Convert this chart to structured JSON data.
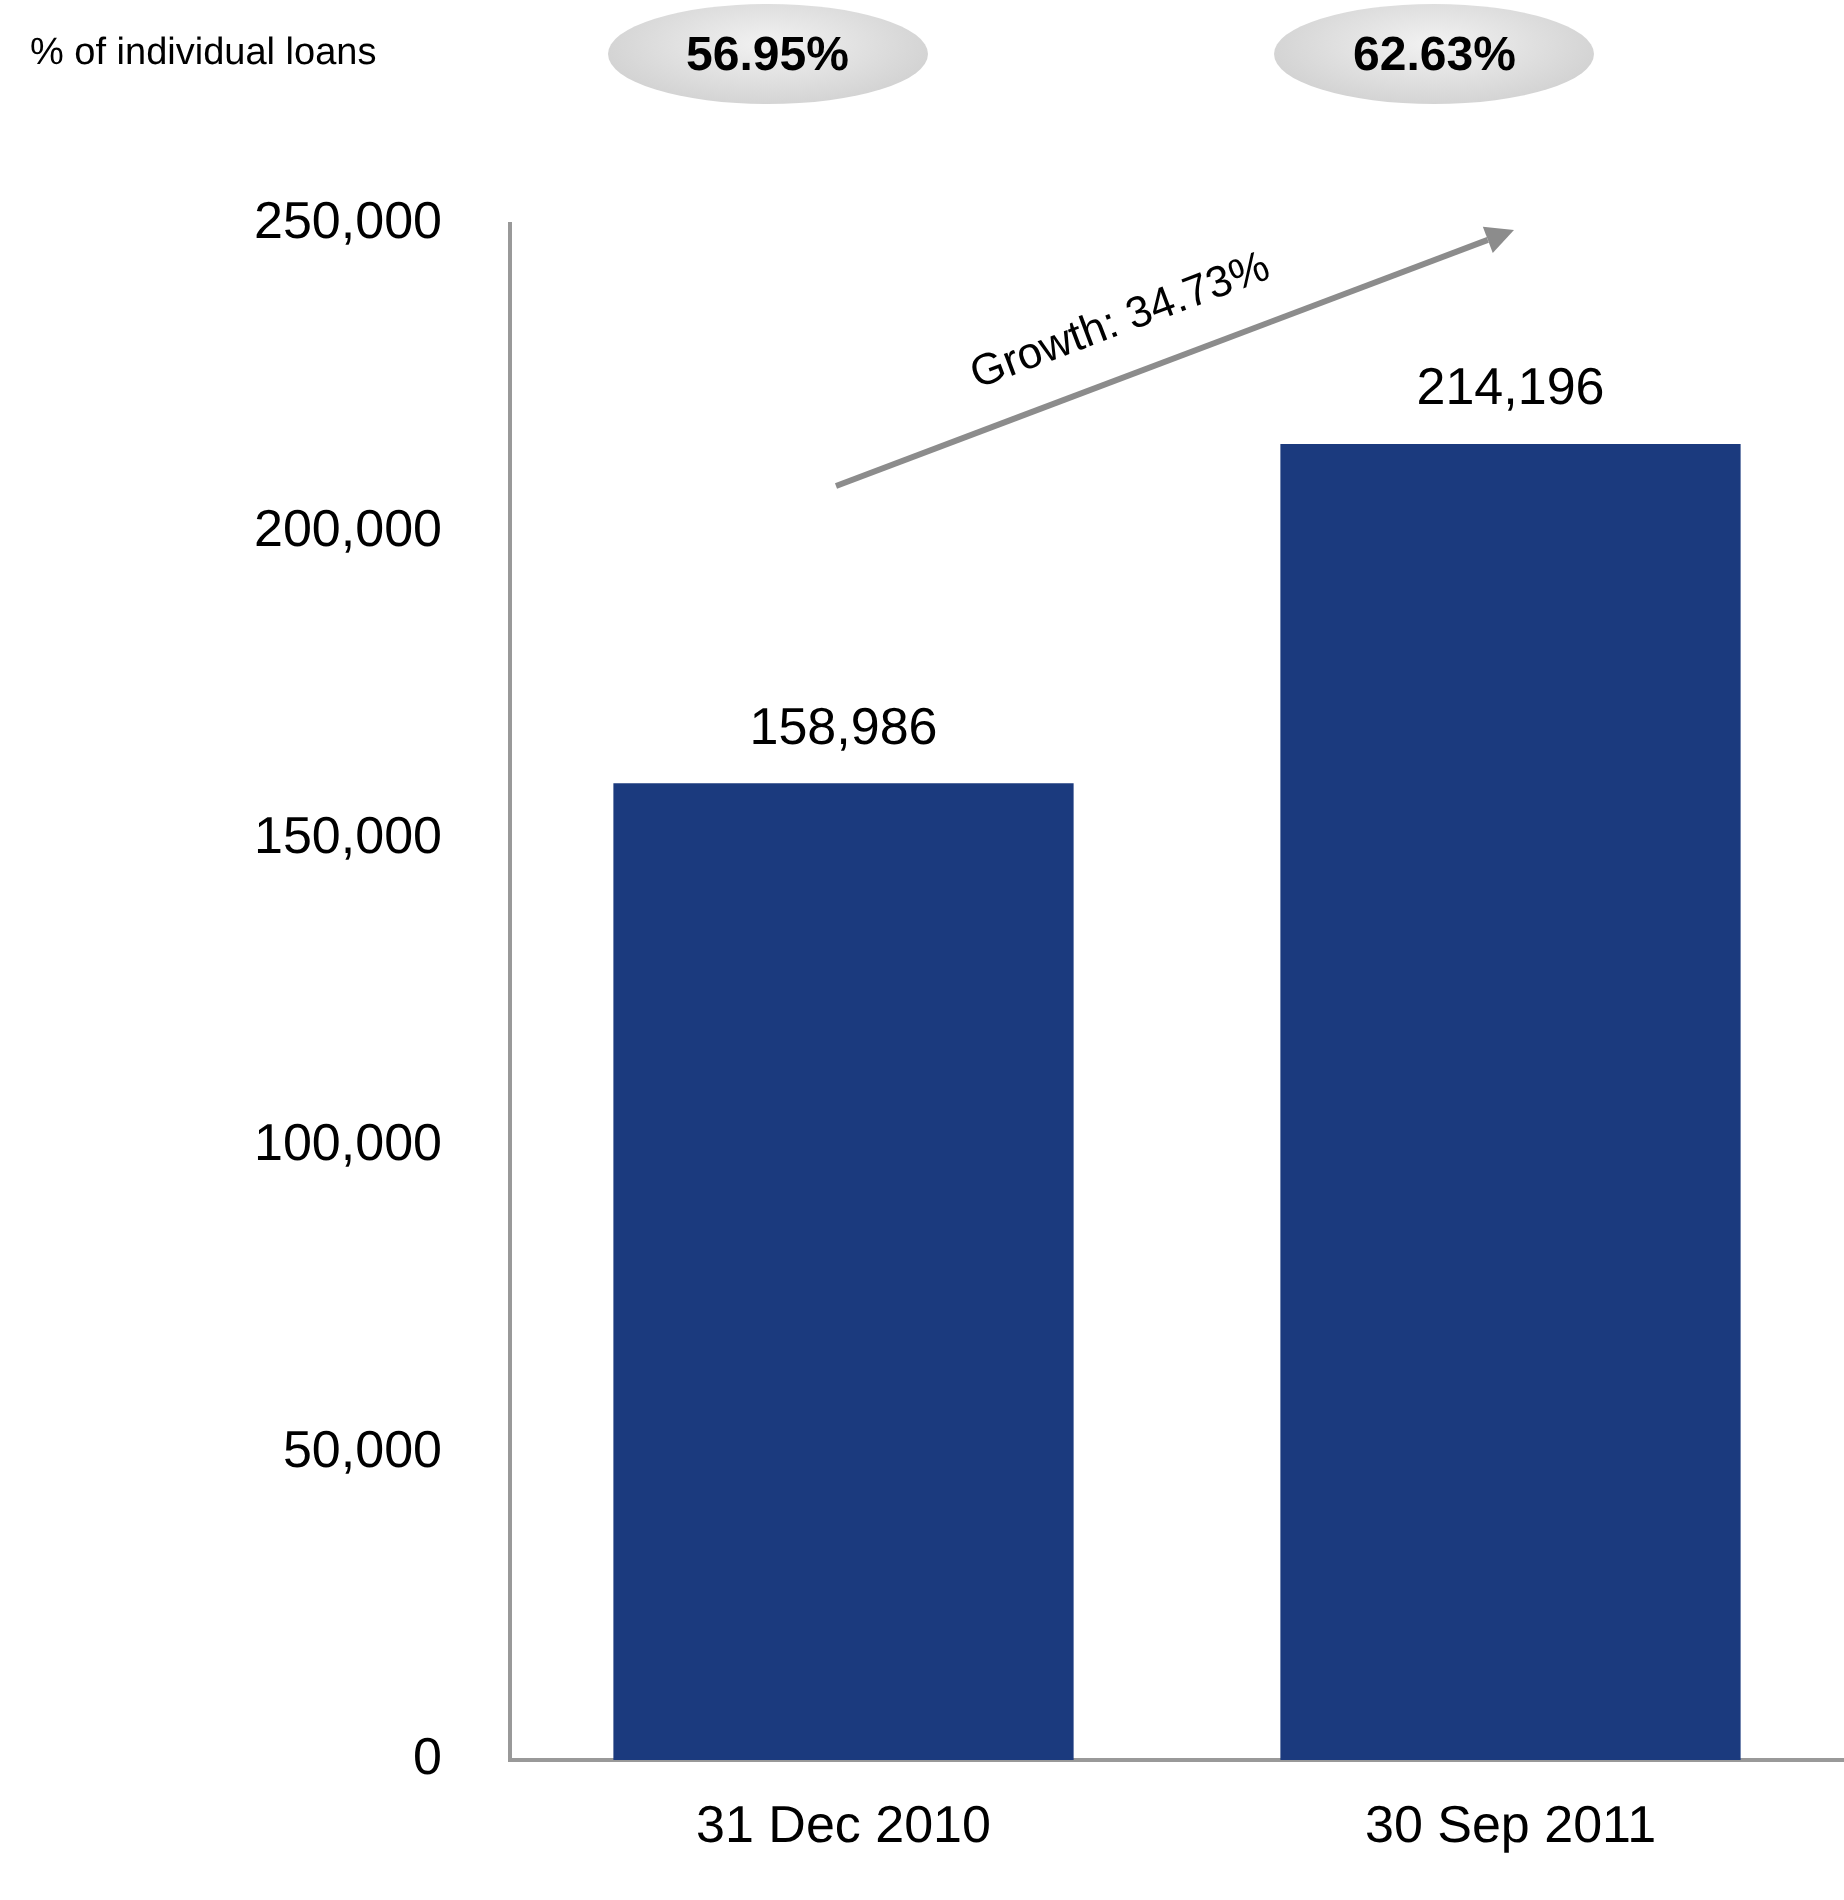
{
  "chart_data": {
    "type": "bar",
    "categories": [
      "31 Dec 2010",
      "30 Sep 2011"
    ],
    "values": [
      158986,
      214196
    ],
    "value_labels": [
      "158,986",
      "214,196"
    ],
    "color": "#1b3a7e",
    "ylim": [
      0,
      250000
    ],
    "yticks": [
      0,
      {
        "value": 50000,
        "label": "50,000"
      },
      {
        "value": 100000,
        "label": "100,000"
      },
      {
        "value": 150000,
        "label": "150,000"
      },
      {
        "value": 200000,
        "label": "200,000"
      },
      {
        "value": 250000,
        "label": "250,000"
      }
    ],
    "grid": false,
    "legend": false,
    "annotations": [
      "% of individual loans",
      "56.95%",
      "62.63%",
      "Growth: 34.73%"
    ]
  }
}
